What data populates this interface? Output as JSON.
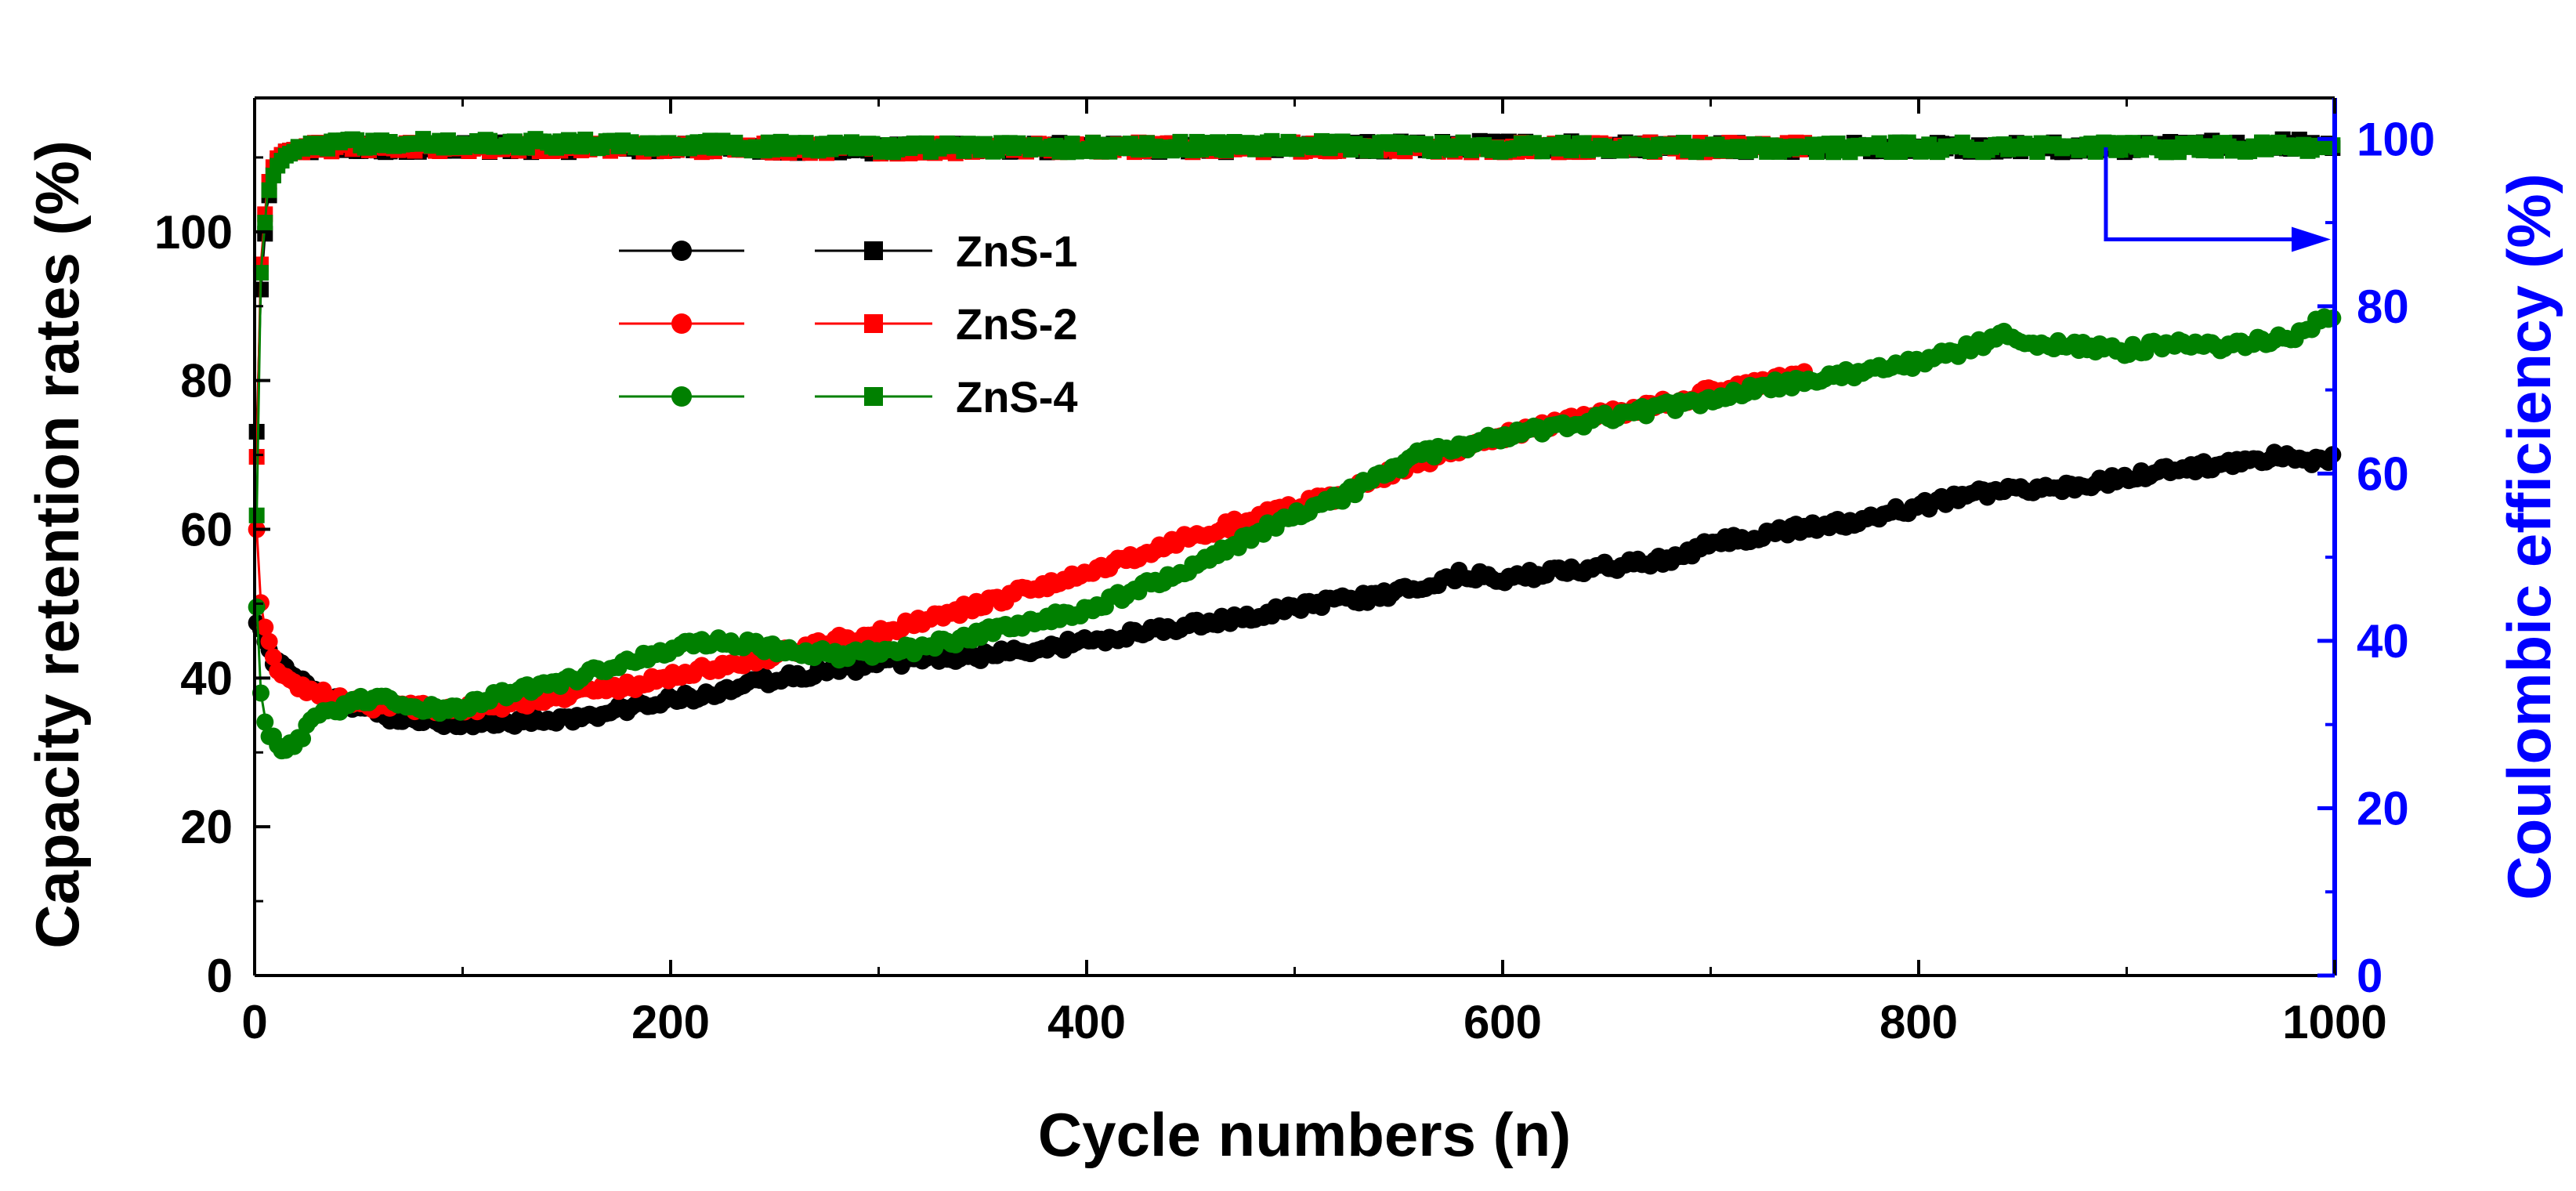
{
  "chart_data": {
    "type": "scatter",
    "title": "",
    "xlabel": "Cycle numbers (n)",
    "ylabel": "Capacity retention rates (%)",
    "y2label": "Coulombic efficiency (%)",
    "xlim": [
      0,
      1000
    ],
    "ylim": [
      0,
      118
    ],
    "y2lim": [
      0,
      104.9
    ],
    "x_ticks": [
      0,
      200,
      400,
      600,
      800,
      1000
    ],
    "y_ticks": [
      0,
      20,
      40,
      60,
      80,
      100
    ],
    "y2_ticks": [
      0,
      20,
      40,
      60,
      80,
      100
    ],
    "grid": false,
    "legend_position": "upper-left",
    "legend_note": "circles = capacity retention (left axis); squares = coulombic efficiency (right axis)",
    "annotation": "arrow pointing to right axis for efficiency curves",
    "colors": {
      "axis": "#000000",
      "right_axis": "#0000ff"
    },
    "series": [
      {
        "name": "ZnS-1",
        "color": "#000000",
        "capacity_retention": {
          "x": [
            1,
            3,
            6,
            10,
            15,
            20,
            30,
            40,
            60,
            80,
            100,
            120,
            140,
            160,
            180,
            200,
            220,
            250,
            280,
            300,
            320,
            350,
            380,
            400,
            450,
            500,
            540,
            560,
            580,
            600,
            620,
            650,
            680,
            700,
            720,
            750,
            770,
            790,
            800,
            820,
            840,
            860,
            880,
            900,
            920,
            940,
            960,
            970,
            980,
            990,
            1000
          ],
          "y": [
            48,
            46,
            44,
            42,
            41,
            40,
            38,
            37,
            35,
            34,
            34,
            34,
            34,
            35,
            36,
            37,
            38,
            40,
            41,
            42,
            42.5,
            43,
            44,
            45,
            47,
            49.5,
            51,
            52,
            54,
            53.5,
            54,
            55,
            56,
            58,
            59,
            60.5,
            61,
            62.5,
            63,
            64.5,
            65,
            65.5,
            66,
            67,
            68,
            68.5,
            69,
            70,
            70,
            69,
            69.5
          ]
        },
        "coulombic_efficiency": {
          "x": [
            1,
            3,
            6,
            10,
            15,
            25,
            50,
            100,
            200,
            300,
            400,
            500,
            600,
            700,
            800,
            900,
            1000
          ],
          "y": [
            65,
            82,
            92,
            97,
            98.5,
            99,
            99,
            99,
            99,
            98.8,
            99,
            99,
            99.2,
            99,
            99,
            99,
            99.5
          ]
        }
      },
      {
        "name": "ZnS-2",
        "color": "#ff0000",
        "capacity_retention": {
          "x": [
            1,
            3,
            6,
            10,
            15,
            20,
            30,
            40,
            60,
            80,
            100,
            120,
            140,
            160,
            180,
            200,
            220,
            250,
            280,
            300,
            320,
            350,
            380,
            400,
            450,
            500,
            520,
            540,
            560,
            580,
            600,
            620,
            650,
            680,
            700,
            720,
            745
          ],
          "y": [
            60,
            50,
            45,
            42,
            40,
            39,
            38,
            37,
            36,
            36,
            36,
            36.5,
            37,
            38,
            39,
            40,
            41.5,
            43,
            45,
            46,
            47.5,
            50,
            52.5,
            54,
            59,
            63,
            64.5,
            67,
            69,
            71,
            72.5,
            74,
            75.5,
            77,
            78.5,
            79.5,
            80.5
          ]
        },
        "coulombic_efficiency": {
          "x": [
            1,
            3,
            6,
            10,
            15,
            25,
            50,
            100,
            200,
            300,
            400,
            500,
            600,
            700,
            745
          ],
          "y": [
            62,
            85,
            94,
            97.5,
            98.5,
            99,
            99,
            99,
            99,
            98.8,
            99,
            99,
            99,
            99,
            99
          ]
        }
      },
      {
        "name": "ZnS-4",
        "color": "#008000",
        "capacity_retention": {
          "x": [
            1,
            3,
            6,
            10,
            15,
            20,
            25,
            30,
            40,
            50,
            60,
            70,
            80,
            90,
            100,
            120,
            140,
            160,
            180,
            200,
            220,
            250,
            280,
            300,
            320,
            350,
            380,
            400,
            450,
            500,
            520,
            540,
            560,
            580,
            600,
            620,
            650,
            680,
            700,
            720,
            750,
            770,
            790,
            800,
            820,
            840,
            860,
            880,
            900,
            920,
            940,
            960,
            980,
            1000
          ],
          "y": [
            50,
            38,
            33,
            31,
            30.5,
            31,
            33,
            35,
            36,
            37,
            37.5,
            37,
            36,
            35.5,
            36,
            38,
            39,
            40.5,
            42,
            44,
            45,
            44,
            43,
            43.5,
            44,
            46,
            48,
            49,
            55,
            62,
            64,
            67,
            70,
            71,
            72.5,
            73.5,
            75,
            76.5,
            77.5,
            79,
            80,
            81,
            82,
            82.5,
            84,
            86,
            85,
            84.5,
            84,
            85,
            84.5,
            85,
            86,
            89
          ]
        },
        "coulombic_efficiency": {
          "x": [
            1,
            3,
            6,
            10,
            15,
            25,
            50,
            100,
            200,
            300,
            400,
            500,
            600,
            700,
            800,
            900,
            1000
          ],
          "y": [
            55,
            84,
            93,
            96.5,
            98,
            99.2,
            99.5,
            99.5,
            99.3,
            99,
            99,
            99.2,
            99,
            99,
            99,
            99,
            99
          ]
        }
      }
    ]
  }
}
